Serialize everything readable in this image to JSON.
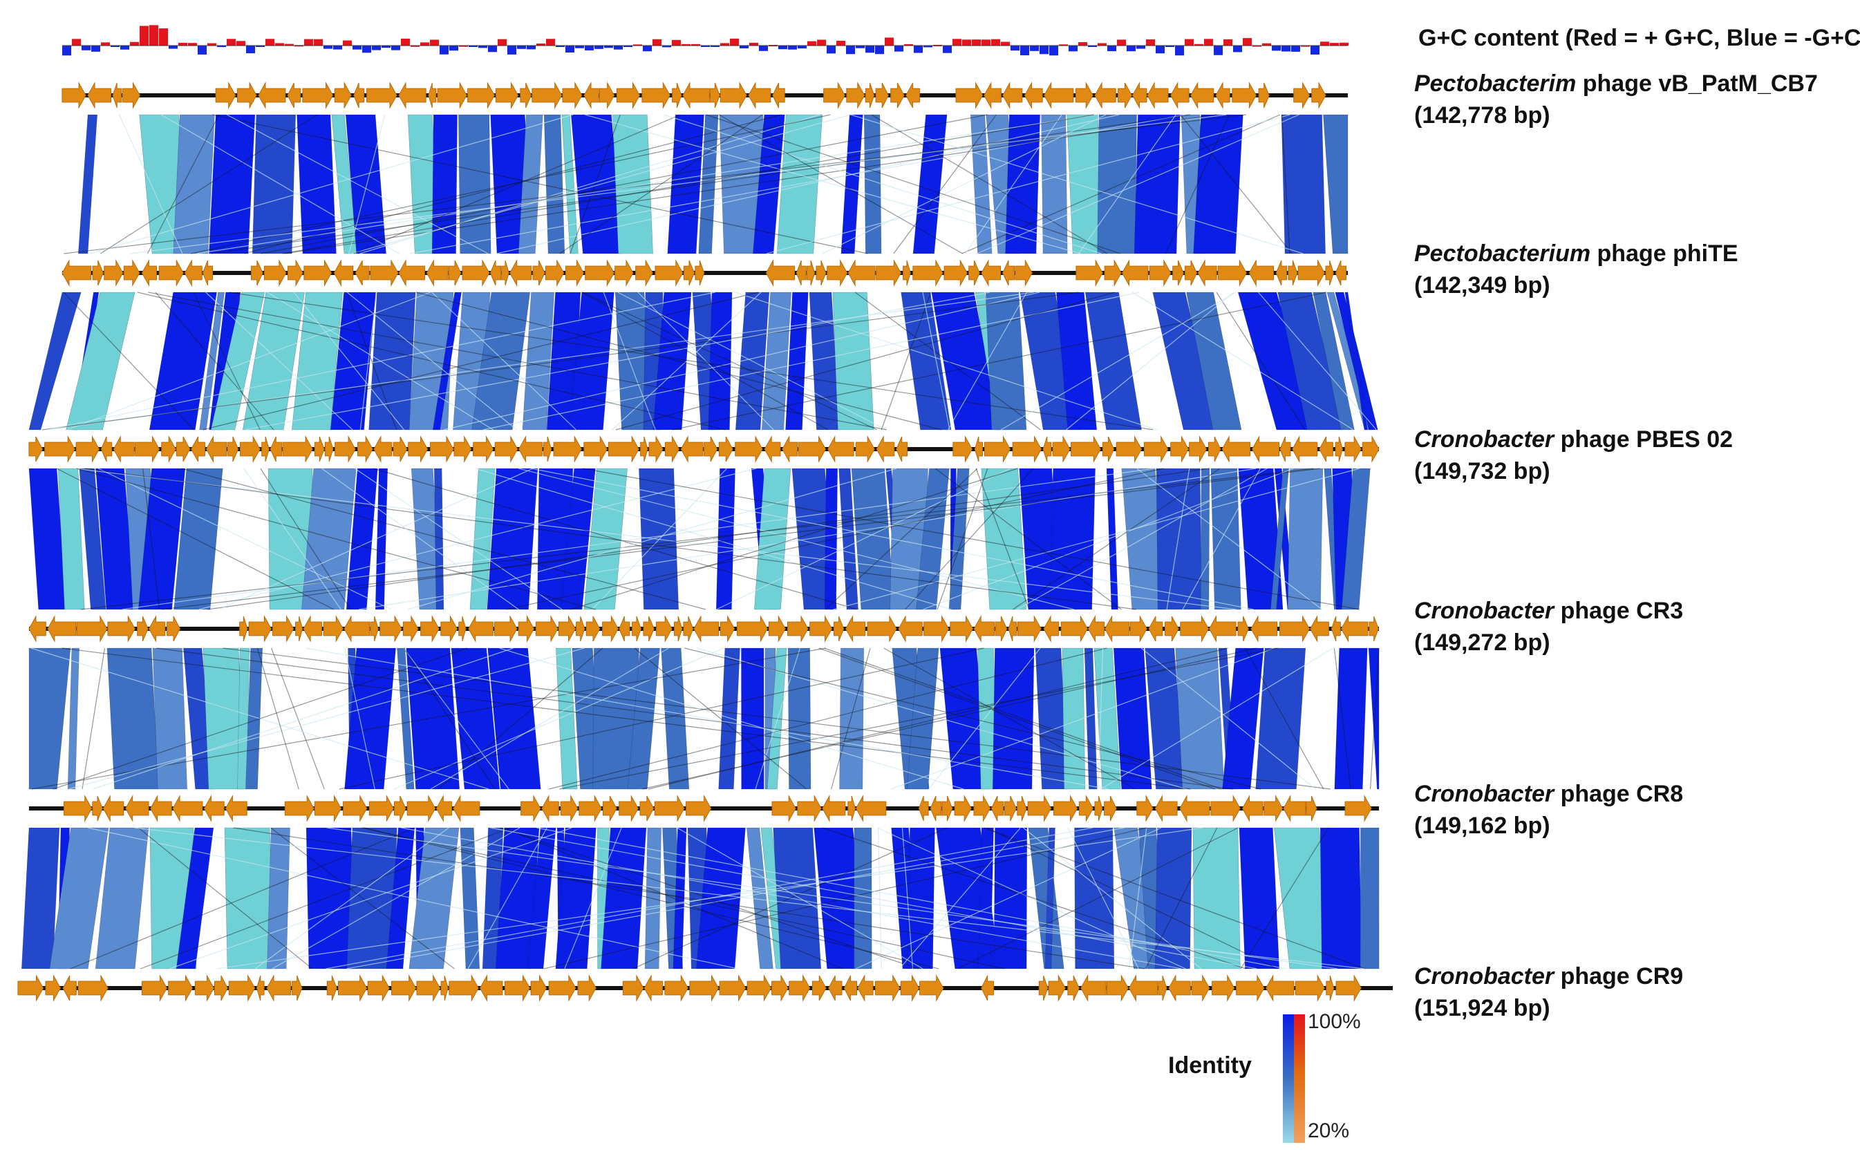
{
  "gc_label": "G+C content (Red = + G+C, Blue = -G+C )",
  "genomes": [
    {
      "genus": "Pectobacterim",
      "rest": " phage vB_PatM_CB7",
      "size": "(142,778 bp)"
    },
    {
      "genus": "Pectobacterium",
      "rest": " phage phiTE",
      "size": "(142,349 bp)"
    },
    {
      "genus": "Cronobacter",
      "rest": " phage PBES 02",
      "size": "(149,732 bp)"
    },
    {
      "genus": "Cronobacter",
      "rest": " phage CR3",
      "size": "(149,272 bp)"
    },
    {
      "genus": "Cronobacter",
      "rest": " phage CR8",
      "size": "(149,162 bp)"
    },
    {
      "genus": "Cronobacter",
      "rest": " phage CR9",
      "size": "(151,924 bp)"
    }
  ],
  "legend": {
    "title": "Identity",
    "max_label": "100%",
    "min_label": "20%"
  },
  "colors": {
    "gene": "#e08a14",
    "gene_edge": "#b86a08",
    "backbone": "#111111",
    "high_identity": "#0a1ee6",
    "mid_identity": "#3d6fc2",
    "low_identity": "#6fd0d6",
    "gc_positive": "#e4141c",
    "gc_negative": "#1428e0"
  }
}
